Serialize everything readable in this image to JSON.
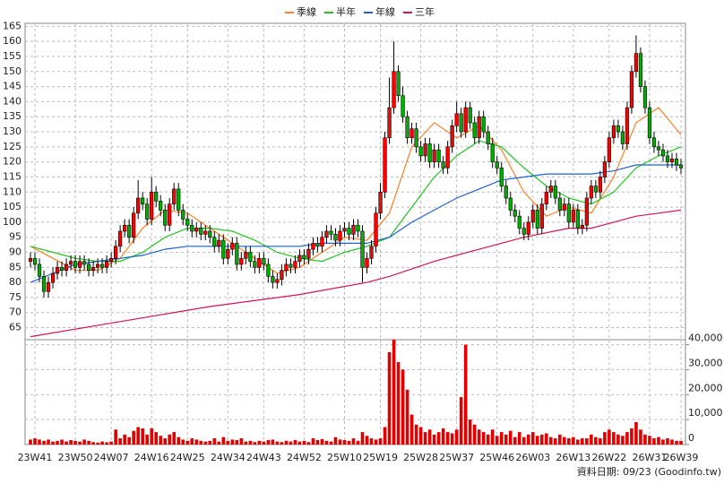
{
  "chart_data": [
    {
      "type": "candlestick",
      "categories": [
        null,
        "23W41",
        null,
        null,
        null,
        null,
        null,
        null,
        null,
        null,
        "23W50",
        null,
        null,
        null,
        null,
        null,
        null,
        null,
        "24W07",
        null,
        null,
        null,
        null,
        null,
        null,
        null,
        null,
        "24W16",
        null,
        null,
        null,
        null,
        null,
        null,
        null,
        "24W25",
        null,
        null,
        null,
        null,
        null,
        null,
        null,
        null,
        "24W34",
        null,
        null,
        null,
        null,
        null,
        null,
        null,
        "24W43",
        null,
        null,
        null,
        null,
        null,
        null,
        null,
        null,
        "24W52",
        null,
        null,
        null,
        null,
        null,
        null,
        null,
        null,
        "25W10",
        null,
        null,
        null,
        null,
        null,
        null,
        null,
        "25W19",
        null,
        null,
        null,
        null,
        null,
        null,
        null,
        null,
        "25W28",
        null,
        null,
        null,
        null,
        null,
        null,
        null,
        "25W37",
        null,
        null,
        null,
        null,
        null,
        null,
        null,
        null,
        "25W46",
        null,
        null,
        null,
        null,
        null,
        null,
        null,
        "26W03",
        null,
        null,
        null,
        null,
        null,
        null,
        null,
        null,
        "26W13",
        null,
        null,
        null,
        null,
        null,
        null,
        null,
        "26W22",
        null,
        null,
        null,
        null,
        null,
        null,
        null,
        null,
        "26W31",
        null,
        null,
        null,
        null,
        null,
        null,
        "26W39"
      ],
      "open": [
        87,
        88,
        86,
        82,
        77,
        80,
        83,
        85,
        84,
        86,
        87,
        85,
        87,
        86,
        84,
        85,
        86,
        85,
        87,
        88,
        92,
        97,
        99,
        95,
        103,
        108,
        106,
        101,
        110,
        107,
        104,
        99,
        106,
        111,
        104,
        101,
        99,
        97,
        98,
        96,
        97,
        95,
        92,
        94,
        88,
        91,
        93,
        86,
        88,
        90,
        87,
        85,
        88,
        86,
        82,
        80,
        81,
        84,
        86,
        85,
        87,
        89,
        88,
        91,
        93,
        92,
        95,
        97,
        96,
        94,
        97,
        98,
        96,
        99,
        97,
        85,
        88,
        92,
        103,
        110,
        128,
        138,
        150,
        142,
        135,
        128,
        131,
        125,
        122,
        126,
        120,
        124,
        120,
        118,
        125,
        132,
        136,
        130,
        138,
        133,
        128,
        135,
        130,
        126,
        120,
        118,
        112,
        108,
        104,
        102,
        98,
        96,
        100,
        104,
        98,
        106,
        110,
        112,
        108,
        104,
        106,
        100,
        104,
        98,
        99,
        108,
        112,
        110,
        115,
        120,
        128,
        132,
        130,
        126,
        138,
        150,
        156,
        145,
        138,
        128,
        125,
        124,
        122,
        120,
        121,
        119
      ],
      "high": [
        90,
        90,
        88,
        84,
        82,
        85,
        87,
        87,
        88,
        89,
        89,
        89,
        89,
        88,
        87,
        88,
        88,
        89,
        90,
        94,
        99,
        101,
        101,
        105,
        114,
        110,
        108,
        115,
        112,
        109,
        106,
        108,
        113,
        113,
        106,
        103,
        101,
        100,
        100,
        99,
        99,
        97,
        96,
        96,
        93,
        95,
        95,
        90,
        92,
        92,
        89,
        90,
        90,
        88,
        84,
        83,
        86,
        88,
        88,
        89,
        91,
        91,
        93,
        95,
        95,
        97,
        99,
        99,
        98,
        99,
        100,
        100,
        101,
        101,
        99,
        90,
        94,
        105,
        113,
        130,
        148,
        160,
        152,
        145,
        137,
        133,
        133,
        127,
        128,
        128,
        126,
        126,
        122,
        127,
        134,
        140,
        138,
        140,
        140,
        135,
        137,
        137,
        132,
        128,
        122,
        120,
        114,
        110,
        106,
        104,
        100,
        102,
        106,
        106,
        108,
        112,
        114,
        114,
        110,
        108,
        108,
        106,
        106,
        101,
        110,
        114,
        114,
        117,
        122,
        130,
        134,
        134,
        132,
        140,
        152,
        162,
        158,
        147,
        140,
        130,
        127,
        126,
        124,
        123,
        123,
        121
      ],
      "low": [
        85,
        84,
        80,
        75,
        75,
        78,
        81,
        82,
        82,
        84,
        83,
        83,
        84,
        82,
        82,
        83,
        83,
        83,
        85,
        86,
        90,
        95,
        93,
        93,
        101,
        104,
        99,
        99,
        105,
        102,
        97,
        97,
        104,
        102,
        99,
        97,
        95,
        95,
        94,
        94,
        93,
        90,
        90,
        86,
        86,
        89,
        84,
        84,
        86,
        85,
        83,
        83,
        84,
        80,
        78,
        78,
        79,
        82,
        83,
        83,
        85,
        86,
        86,
        89,
        90,
        90,
        93,
        94,
        92,
        92,
        95,
        94,
        94,
        95,
        80,
        83,
        86,
        90,
        101,
        108,
        126,
        136,
        140,
        133,
        126,
        126,
        123,
        120,
        120,
        118,
        118,
        118,
        116,
        116,
        123,
        130,
        128,
        128,
        131,
        126,
        126,
        128,
        124,
        118,
        116,
        110,
        106,
        102,
        100,
        96,
        94,
        94,
        98,
        96,
        96,
        104,
        108,
        106,
        102,
        102,
        98,
        98,
        96,
        96,
        97,
        106,
        108,
        108,
        113,
        118,
        126,
        128,
        124,
        124,
        136,
        148,
        143,
        136,
        126,
        123,
        122,
        120,
        118,
        118,
        117,
        116
      ],
      "close": [
        88,
        86,
        82,
        77,
        80,
        83,
        85,
        84,
        86,
        87,
        85,
        87,
        86,
        84,
        85,
        86,
        85,
        87,
        88,
        92,
        97,
        99,
        95,
        103,
        108,
        106,
        101,
        110,
        107,
        104,
        99,
        106,
        111,
        104,
        101,
        99,
        97,
        98,
        96,
        97,
        95,
        92,
        94,
        88,
        91,
        93,
        86,
        88,
        90,
        87,
        85,
        88,
        86,
        82,
        80,
        81,
        84,
        86,
        85,
        87,
        89,
        88,
        91,
        93,
        92,
        95,
        97,
        96,
        94,
        97,
        98,
        96,
        99,
        97,
        85,
        88,
        92,
        103,
        110,
        128,
        138,
        150,
        142,
        135,
        128,
        131,
        125,
        122,
        126,
        120,
        124,
        120,
        118,
        125,
        132,
        136,
        130,
        138,
        133,
        128,
        135,
        130,
        126,
        120,
        118,
        112,
        108,
        104,
        102,
        98,
        96,
        100,
        104,
        98,
        106,
        110,
        112,
        108,
        104,
        106,
        100,
        104,
        98,
        99,
        108,
        112,
        110,
        115,
        120,
        128,
        132,
        130,
        126,
        138,
        150,
        156,
        145,
        138,
        128,
        125,
        124,
        122,
        120,
        121,
        119,
        118
      ],
      "up_color": "#ff0000",
      "down_color": "#00b000",
      "lines": [
        {
          "name": "季線",
          "color": "#ff7f27",
          "x": [
            0,
            5,
            10,
            15,
            20,
            25,
            30,
            35,
            40,
            45,
            50,
            55,
            60,
            65,
            70,
            75,
            80,
            85,
            90,
            95,
            100,
            105,
            110,
            115,
            120,
            125,
            130,
            135,
            140,
            145
          ],
          "values": [
            92,
            88,
            84,
            84,
            88,
            98,
            104,
            103,
            98,
            93,
            88,
            83,
            85,
            90,
            95,
            94,
            103,
            125,
            133,
            128,
            132,
            124,
            110,
            102,
            105,
            103,
            115,
            133,
            138,
            129
          ]
        },
        {
          "name": "半年",
          "color": "#22c322",
          "x": [
            0,
            5,
            10,
            15,
            20,
            25,
            30,
            35,
            40,
            45,
            50,
            55,
            60,
            65,
            70,
            75,
            80,
            85,
            90,
            95,
            100,
            105,
            110,
            115,
            120,
            125,
            130,
            135,
            140,
            145
          ],
          "values": [
            92,
            90,
            88,
            87,
            87,
            90,
            95,
            98,
            98,
            97,
            94,
            90,
            88,
            87,
            90,
            92,
            95,
            105,
            115,
            122,
            127,
            125,
            118,
            112,
            108,
            106,
            110,
            118,
            122,
            125
          ]
        },
        {
          "name": "年線",
          "color": "#1f5fd0",
          "x": [
            0,
            5,
            10,
            15,
            20,
            25,
            30,
            35,
            40,
            45,
            50,
            55,
            60,
            65,
            70,
            75,
            80,
            85,
            90,
            95,
            100,
            105,
            110,
            115,
            120,
            125,
            130,
            135,
            140,
            145
          ],
          "values": [
            80,
            83,
            86,
            87,
            88,
            89,
            91,
            92,
            92,
            92,
            92,
            92,
            92,
            93,
            93,
            93,
            95,
            100,
            104,
            108,
            111,
            114,
            115,
            116,
            116,
            116,
            117,
            119,
            119,
            119
          ]
        },
        {
          "name": "三年",
          "color": "#d0145a",
          "x": [
            0,
            20,
            40,
            60,
            75,
            80,
            90,
            100,
            110,
            120,
            125,
            130,
            135,
            140,
            145
          ],
          "values": [
            62,
            67,
            72,
            76,
            80,
            82,
            87,
            91,
            95,
            98,
            98,
            100,
            102,
            103,
            104
          ]
        }
      ],
      "ylim": [
        61,
        166
      ],
      "yticks": [
        65,
        70,
        75,
        80,
        85,
        90,
        95,
        100,
        105,
        110,
        115,
        120,
        125,
        130,
        135,
        140,
        145,
        150,
        155,
        160,
        165
      ],
      "grid": true
    },
    {
      "type": "bar",
      "color": "#e00000",
      "values": [
        2000,
        2500,
        2000,
        1500,
        2000,
        1200,
        1500,
        2000,
        1200,
        1800,
        1500,
        1200,
        2000,
        1500,
        1000,
        800,
        1200,
        900,
        1200,
        6000,
        2500,
        4000,
        3000,
        5500,
        7000,
        6500,
        4000,
        6500,
        5000,
        3500,
        2500,
        4000,
        5000,
        3000,
        2000,
        1500,
        2500,
        2000,
        1500,
        1200,
        1500,
        2500,
        1200,
        3000,
        1500,
        2000,
        1800,
        2500,
        1200,
        1500,
        1000,
        1500,
        1200,
        1800,
        2000,
        1200,
        1000,
        1500,
        1200,
        1800,
        1200,
        1500,
        1000,
        2500,
        1800,
        2200,
        1500,
        1200,
        3000,
        2000,
        1800,
        1500,
        2500,
        1500,
        5000,
        3500,
        2500,
        2000,
        2500,
        7000,
        37000,
        42000,
        33000,
        30000,
        22000,
        12000,
        8000,
        7000,
        5000,
        6000,
        4000,
        5000,
        6500,
        5000,
        4500,
        6000,
        19000,
        40000,
        10000,
        8000,
        6000,
        5000,
        4000,
        6000,
        3500,
        5000,
        4000,
        5500,
        3000,
        5000,
        3000,
        4000,
        5000,
        3500,
        4000,
        4500,
        3000,
        2500,
        4000,
        3000,
        2500,
        3000,
        2000,
        2500,
        2500,
        4000,
        3000,
        2500,
        5000,
        6000,
        5000,
        4000,
        3500,
        5000,
        6500,
        9000,
        6000,
        4000,
        3500,
        2500,
        3000,
        2000,
        2500,
        2000,
        1500,
        1500
      ],
      "ylim": [
        0,
        42000
      ],
      "yticks": [
        0,
        {
          "value": 10000,
          "label": "10,000"
        },
        {
          "value": 20000,
          "label": "20,000"
        },
        {
          "value": 30000,
          "label": "30,000"
        },
        {
          "value": 40000,
          "label": "40,000"
        }
      ],
      "grid": true
    }
  ],
  "footer": "資料日期: 09/23  (Goodinfo.tw)"
}
